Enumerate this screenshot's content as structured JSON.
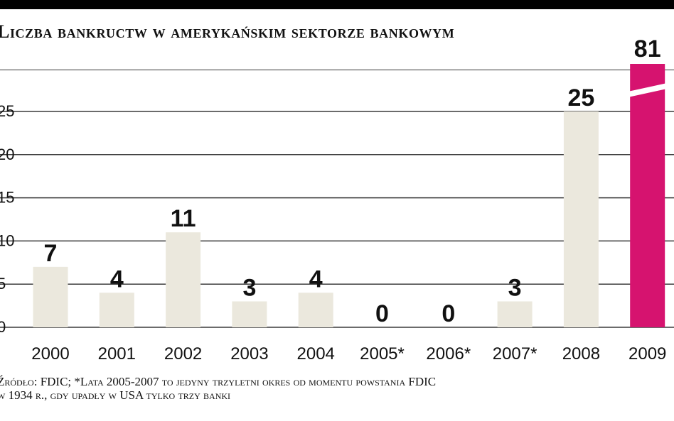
{
  "title": "Liczba bankructw w amerykańskim sektorze bankowym",
  "footnote": {
    "line1": "Źródło: FDIC; *Lata 2005-2007 to jedyny trzyletni okres od momentu powstania FDIC",
    "line2": "w 1934 r., gdy upadły w USA tylko trzy banki"
  },
  "colors": {
    "bar": "#ebe8dd",
    "highlight": "#d6136f",
    "grid": "#3a3a3a",
    "text": "#111111"
  },
  "chart_data": {
    "type": "bar",
    "title": "Liczba bankructw w amerykańskim sektorze bankowym",
    "xlabel": "",
    "ylabel": "",
    "categories": [
      "2000",
      "2001",
      "2002",
      "2003",
      "2004",
      "2005*",
      "2006*",
      "2007*",
      "2008",
      "2009"
    ],
    "values": [
      7,
      4,
      11,
      3,
      4,
      0,
      0,
      3,
      25,
      81
    ],
    "data_labels": [
      "7",
      "4",
      "11",
      "3",
      "4",
      "0",
      "0",
      "3",
      "25",
      "81"
    ],
    "yticks": [
      0,
      5,
      10,
      15,
      20,
      25
    ],
    "ytick_labels": [
      "0",
      "5",
      "10",
      "15",
      "20",
      "25"
    ],
    "ylim": [
      0,
      25
    ],
    "axis_break_above_top": true,
    "highlight_category": "2009",
    "grid": true,
    "legend": "none"
  }
}
